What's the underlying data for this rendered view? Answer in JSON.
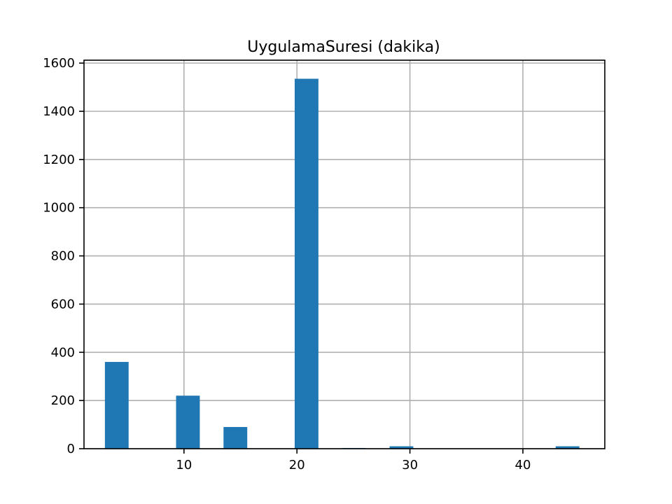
{
  "chart_data": {
    "type": "bar",
    "title": "UygulamaSuresi (dakika)",
    "xlabel": "",
    "ylabel": "",
    "xlim": [
      1.15,
      47.25
    ],
    "ylim": [
      0,
      1612
    ],
    "grid": true,
    "x_ticks": [
      10,
      20,
      30,
      40
    ],
    "y_ticks": [
      0,
      200,
      400,
      600,
      800,
      1000,
      1200,
      1400,
      1600
    ],
    "bar_color": "#1f77b4",
    "bins": [
      {
        "x0": 3.0,
        "x1": 5.1,
        "value": 360
      },
      {
        "x0": 9.3,
        "x1": 11.4,
        "value": 220
      },
      {
        "x0": 13.5,
        "x1": 15.6,
        "value": 90
      },
      {
        "x0": 19.8,
        "x1": 21.9,
        "value": 1535
      },
      {
        "x0": 24.0,
        "x1": 26.1,
        "value": 3
      },
      {
        "x0": 28.2,
        "x1": 30.3,
        "value": 10
      },
      {
        "x0": 42.9,
        "x1": 45.0,
        "value": 10
      }
    ]
  }
}
